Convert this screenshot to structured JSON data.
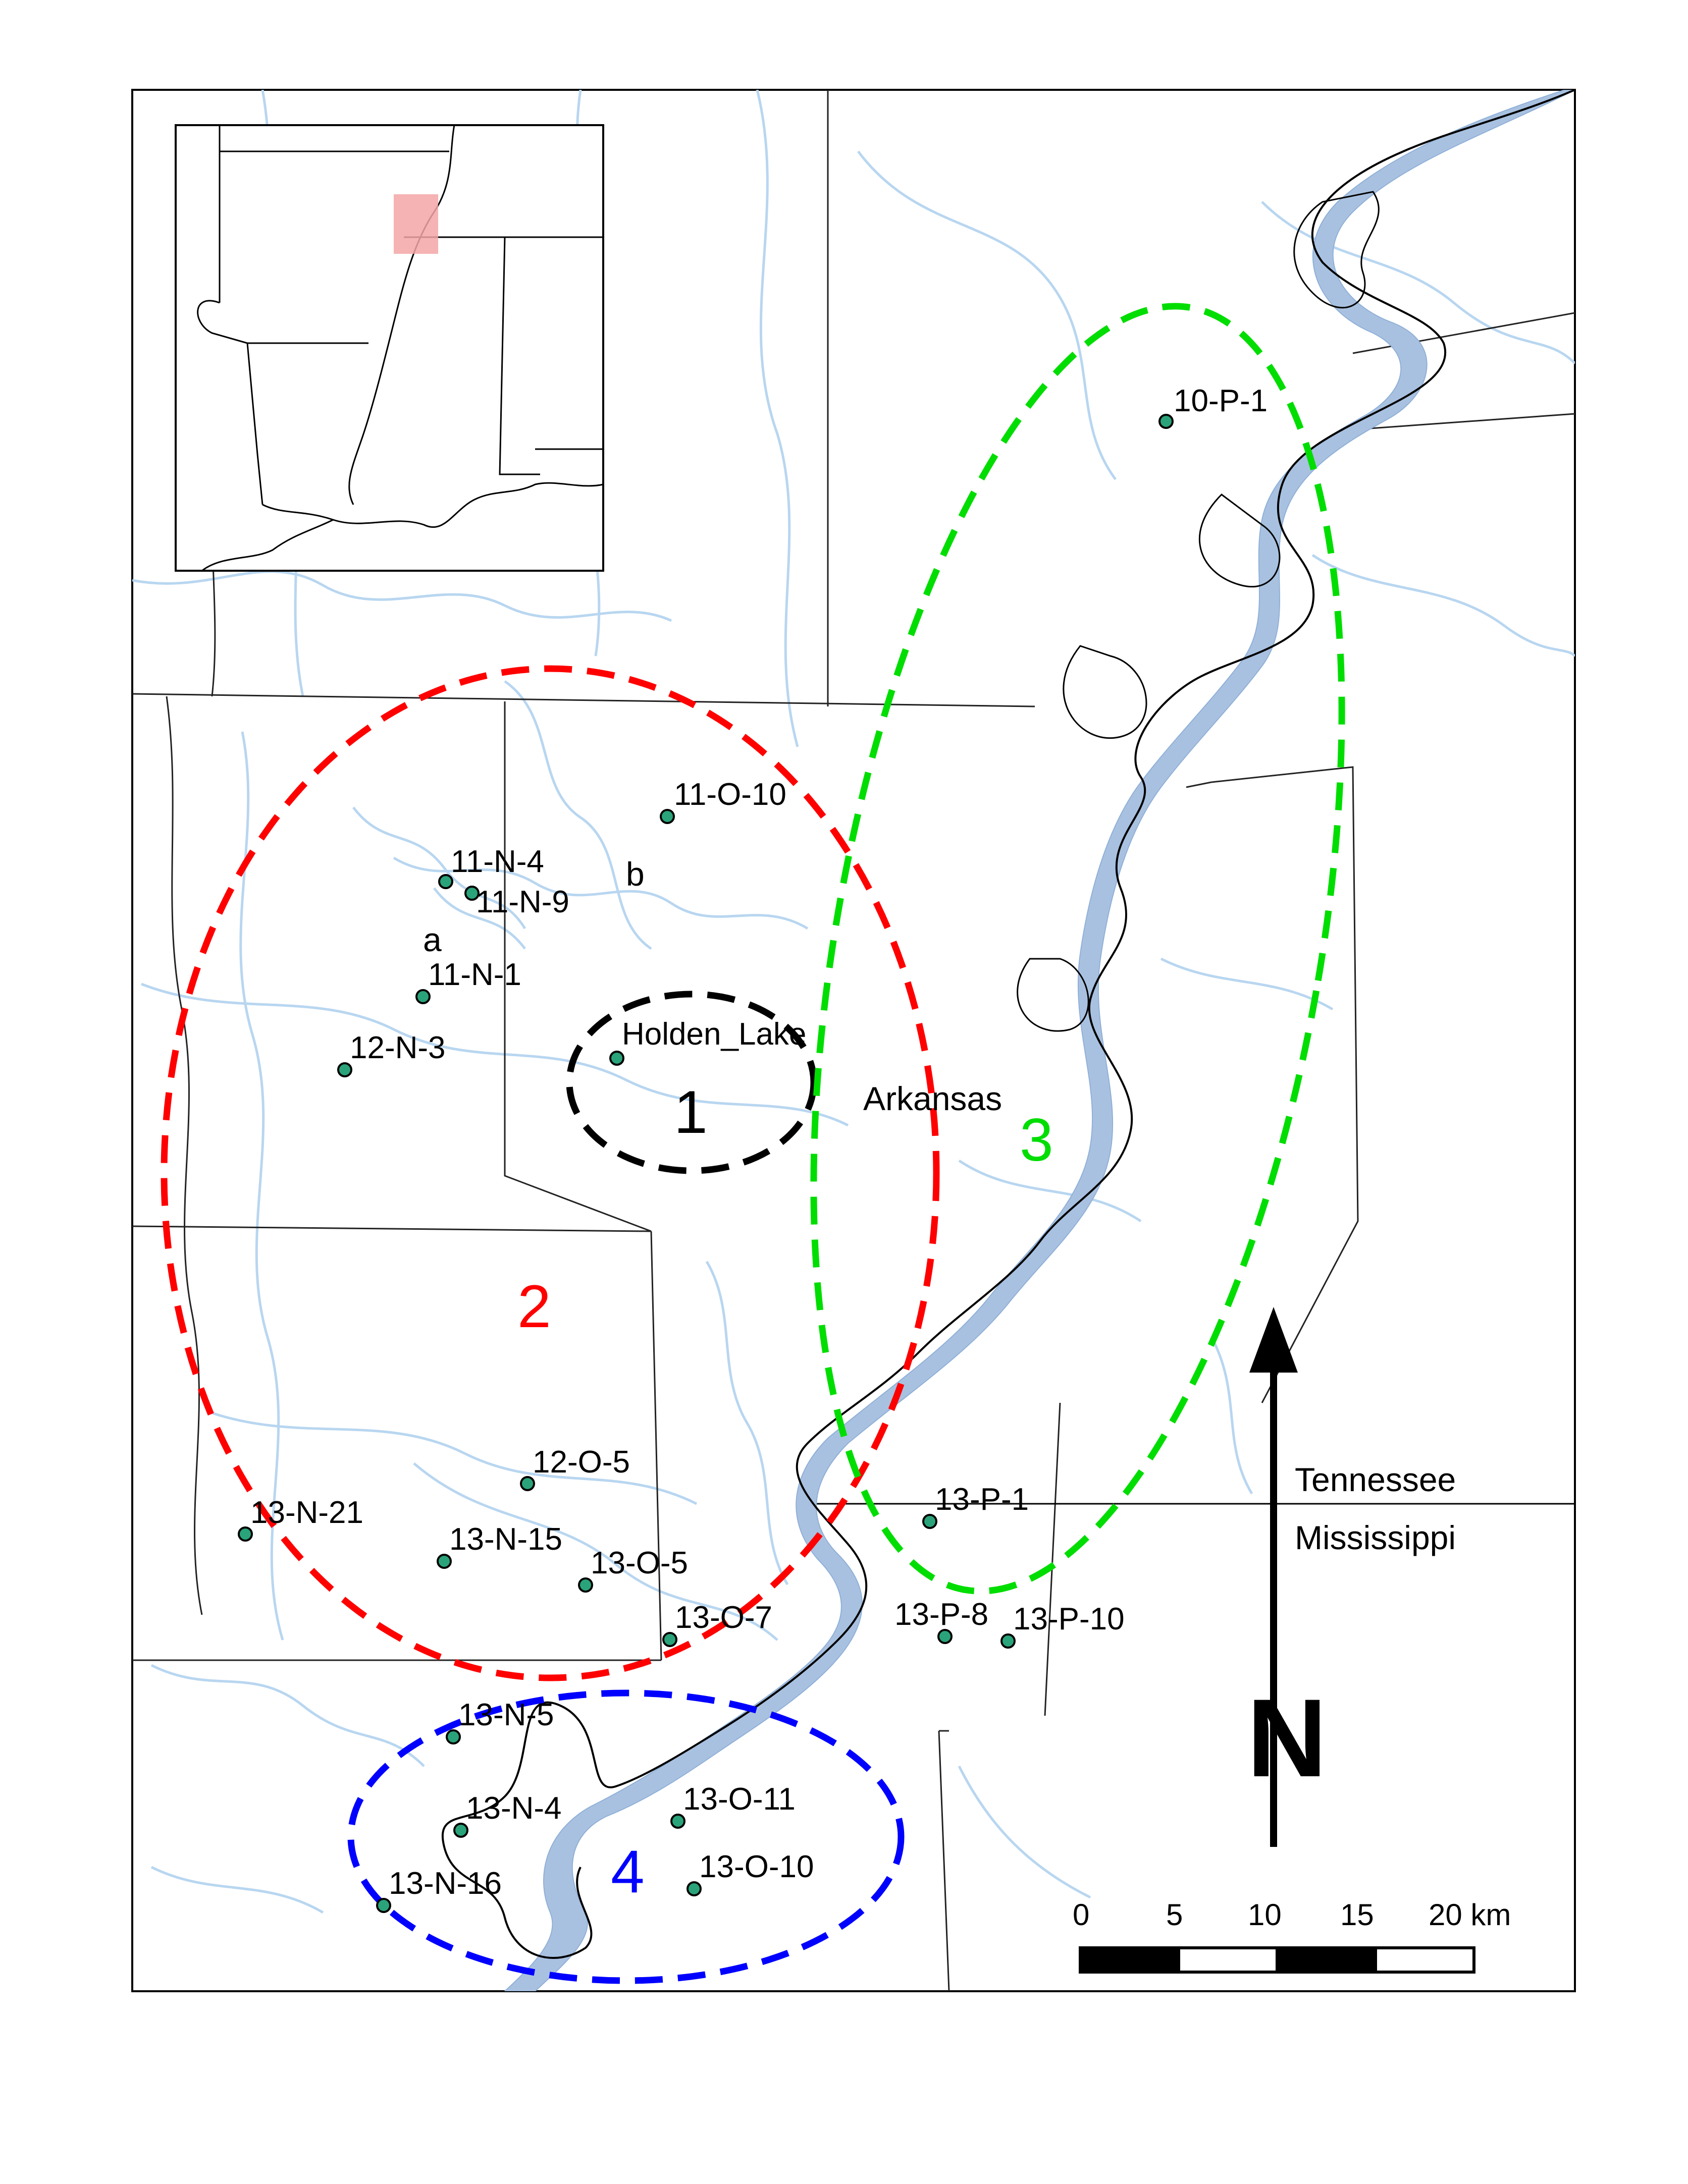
{
  "inset": {
    "highlight_color": "#f4a6a6"
  },
  "states": {
    "arkansas": "Arkansas",
    "tennessee": "Tennessee",
    "mississippi": "Mississippi"
  },
  "zones": [
    {
      "id": "1",
      "label": "1",
      "color": "#000000"
    },
    {
      "id": "2",
      "label": "2",
      "color": "#ff0000"
    },
    {
      "id": "3",
      "label": "3",
      "color": "#00dd00"
    },
    {
      "id": "4",
      "label": "4",
      "color": "#0000ff"
    }
  ],
  "sites": [
    {
      "label": "10-P-1"
    },
    {
      "label": "11-O-10"
    },
    {
      "label": "11-N-4"
    },
    {
      "label": "11-N-9"
    },
    {
      "label": "11-N-1"
    },
    {
      "label": "12-N-3"
    },
    {
      "label": "Holden_Lake"
    },
    {
      "label": "12-O-5"
    },
    {
      "label": "13-N-21"
    },
    {
      "label": "13-N-15"
    },
    {
      "label": "13-O-5"
    },
    {
      "label": "13-O-7"
    },
    {
      "label": "13-P-1"
    },
    {
      "label": "13-P-8"
    },
    {
      "label": "13-P-10"
    },
    {
      "label": "13-N-5"
    },
    {
      "label": "13-N-4"
    },
    {
      "label": "13-O-11"
    },
    {
      "label": "13-O-10"
    },
    {
      "label": "13-N-16"
    }
  ],
  "site_color": "#2aa37a",
  "letters": {
    "a": "a",
    "b": "b"
  },
  "north_arrow": {
    "label": "N"
  },
  "scale_bar": {
    "ticks": [
      "0",
      "5",
      "10",
      "15",
      "20 km"
    ]
  },
  "colors": {
    "river_fill": "#a9c1e0",
    "stream": "#b8d6f0",
    "boundary": "#222222"
  }
}
